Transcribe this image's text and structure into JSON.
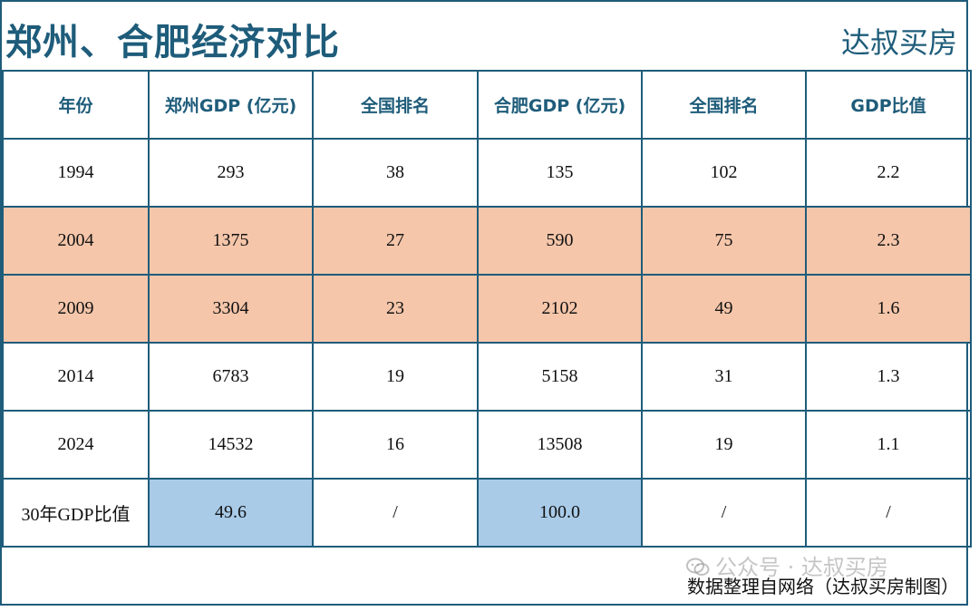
{
  "header": {
    "title": "郑州、合肥经济对比",
    "brand": "达叔买房"
  },
  "table": {
    "columns": [
      "年份",
      "郑州GDP (亿元)",
      "全国排名",
      "合肥GDP (亿元)",
      "全国排名",
      "GDP比值"
    ],
    "rows": [
      [
        "1994",
        "293",
        "38",
        "135",
        "102",
        "2.2"
      ],
      [
        "2004",
        "1375",
        "27",
        "590",
        "75",
        "2.3"
      ],
      [
        "2009",
        "3304",
        "23",
        "2102",
        "49",
        "1.6"
      ],
      [
        "2014",
        "6783",
        "19",
        "5158",
        "31",
        "1.3"
      ],
      [
        "2024",
        "14532",
        "16",
        "13508",
        "19",
        "1.1"
      ],
      [
        "30年GDP比值",
        "49.6",
        "/",
        "100.0",
        "/",
        "/"
      ]
    ]
  },
  "footer": {
    "source": "数据整理自网络（达叔买房制图）"
  },
  "watermark": {
    "text": "公众号 · 达叔买房",
    "icon": "wechat-icon"
  },
  "colors": {
    "border": "#1e5c7a",
    "header_text": "#1e5c7a",
    "highlight_row": "#f5c6aa",
    "highlight_cell": "#a9cbe8"
  }
}
